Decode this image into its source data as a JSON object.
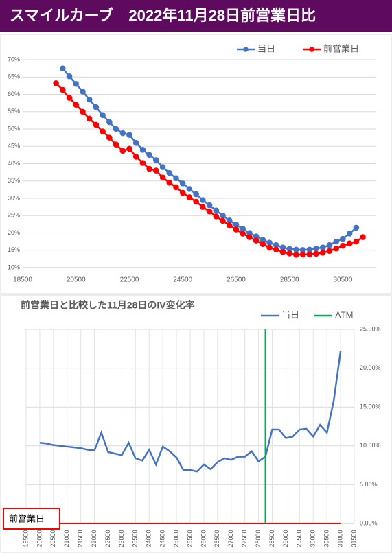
{
  "title": "スマイルカーブ　2022年11月28日前営業日比",
  "chart_data": [
    {
      "type": "line",
      "ylim": [
        10,
        70
      ],
      "xlim": [
        18500,
        31750
      ],
      "grid": "y",
      "markers": true,
      "legend": "top-right",
      "yticks": [
        {
          "value": 10,
          "label": "10%"
        },
        {
          "value": 15,
          "label": "15%"
        },
        {
          "value": 20,
          "label": "20%"
        },
        {
          "value": 25,
          "label": "25%"
        },
        {
          "value": 30,
          "label": "30%"
        },
        {
          "value": 35,
          "label": "35%"
        },
        {
          "value": 40,
          "label": "40%"
        },
        {
          "value": 45,
          "label": "45%"
        },
        {
          "value": 50,
          "label": "50%"
        },
        {
          "value": 55,
          "label": "55%"
        },
        {
          "value": 60,
          "label": "60%"
        },
        {
          "value": 65,
          "label": "65%"
        },
        {
          "value": 70,
          "label": "70%"
        }
      ],
      "xticks": [
        18500,
        20500,
        22500,
        24500,
        26500,
        28500,
        30500
      ],
      "series": [
        {
          "name": "当日",
          "color": "#4472c4",
          "x": [
            20000,
            20250,
            20500,
            20750,
            21000,
            21250,
            21500,
            21750,
            22000,
            22250,
            22500,
            22750,
            23000,
            23250,
            23500,
            23750,
            24000,
            24250,
            24500,
            24750,
            25000,
            25250,
            25500,
            25750,
            26000,
            26250,
            26500,
            26750,
            27000,
            27250,
            27500,
            27750,
            28000,
            28250,
            28500,
            28750,
            29000,
            29250,
            29500,
            29750,
            30000,
            30250,
            30500,
            30750,
            31000
          ],
          "values": [
            67.5,
            65.2,
            63,
            60.8,
            58.5,
            56.3,
            54,
            52,
            50,
            48.8,
            48.3,
            46,
            44,
            42.5,
            41,
            39,
            37.3,
            35.8,
            34.3,
            32.7,
            31.2,
            29.5,
            28,
            26.5,
            25,
            23.6,
            22.4,
            21.2,
            20,
            19,
            18,
            17.2,
            16.5,
            15.8,
            15.4,
            15.2,
            15.1,
            15.2,
            15.5,
            15.8,
            16.5,
            17.5,
            18.3,
            19.8,
            21.5
          ]
        },
        {
          "name": "前営業日",
          "color": "#ff0000",
          "x": [
            19750,
            20000,
            20250,
            20500,
            20750,
            21000,
            21250,
            21500,
            21750,
            22000,
            22250,
            22500,
            22750,
            23000,
            23250,
            23500,
            23750,
            24000,
            24250,
            24500,
            24750,
            25000,
            25250,
            25500,
            25750,
            26000,
            26250,
            26500,
            26750,
            27000,
            27250,
            27500,
            27750,
            28000,
            28250,
            28500,
            28750,
            29000,
            29250,
            29500,
            29750,
            30000,
            30250,
            30500,
            30750,
            31000,
            31250
          ],
          "values": [
            63.2,
            61.3,
            59,
            57,
            55,
            53,
            51.2,
            49.3,
            47.5,
            45.5,
            43.7,
            44.3,
            42,
            40.2,
            38.5,
            38,
            36,
            34.5,
            33.2,
            31.6,
            30.3,
            29,
            27.5,
            26.2,
            24.8,
            23.5,
            22.2,
            21,
            19.8,
            18.8,
            17.8,
            16.8,
            15.8,
            15.2,
            14.5,
            14.1,
            13.7,
            13.8,
            13.8,
            14,
            14.3,
            14.8,
            15.5,
            16.3,
            17,
            17.5,
            18.8
          ]
        }
      ]
    },
    {
      "type": "line",
      "title": "前営業日と比較した11月28日のIV変化率",
      "ylim": [
        0,
        25
      ],
      "xlim": [
        19500,
        31500
      ],
      "grid": "both",
      "markers": false,
      "legend": "top-right",
      "y_axis_position": "right",
      "xtick_rotation": 90,
      "yticks": [
        {
          "value": 0,
          "label": "0.00%"
        },
        {
          "value": 5,
          "label": "5.00%"
        },
        {
          "value": 10,
          "label": "10.00%"
        },
        {
          "value": 15,
          "label": "15.00%"
        },
        {
          "value": 20,
          "label": "20.00%"
        },
        {
          "value": 25,
          "label": "25.00%"
        }
      ],
      "xticks": [
        19500,
        20000,
        20500,
        21000,
        21500,
        22000,
        22500,
        23000,
        23500,
        24000,
        24500,
        25000,
        25500,
        26000,
        26500,
        27000,
        27500,
        28000,
        28500,
        29000,
        29500,
        30000,
        30500,
        31000,
        31500
      ],
      "x": [
        20000,
        20250,
        20500,
        20750,
        21000,
        21250,
        21500,
        21750,
        22000,
        22250,
        22500,
        22750,
        23000,
        23250,
        23500,
        23750,
        24000,
        24250,
        24500,
        24750,
        25000,
        25250,
        25500,
        25750,
        26000,
        26250,
        26500,
        26750,
        27000,
        27250,
        27500,
        27750,
        28000,
        28250,
        28500,
        28750,
        29000,
        29250,
        29500,
        29750,
        30000,
        30250,
        30500,
        30750,
        31000
      ],
      "series": [
        {
          "name": "当日",
          "color": "#4472c4",
          "values": [
            10.4,
            10.3,
            10.1,
            10.0,
            9.9,
            9.8,
            9.7,
            9.5,
            9.4,
            11.7,
            9.2,
            9.0,
            8.8,
            10.4,
            8.4,
            8.1,
            9.5,
            7.6,
            9.9,
            9.3,
            8.5,
            6.9,
            6.9,
            6.7,
            7.6,
            7.0,
            7.9,
            8.4,
            8.2,
            8.6,
            8.6,
            9.3,
            8.0,
            8.6,
            12.1,
            12.1,
            11.0,
            11.2,
            12.1,
            12.2,
            11.2,
            12.7,
            11.7,
            15.8,
            22.2
          ]
        }
      ],
      "atm": {
        "name": "ATM",
        "color": "#00b050",
        "x": 28250
      },
      "baseline": {
        "name": "前営業日",
        "color": "#ff0000",
        "values": [
          0,
          0,
          0,
          0,
          0,
          0,
          0,
          0,
          0,
          0,
          0,
          0,
          0,
          0,
          0,
          0,
          0,
          0,
          0,
          0,
          0,
          0,
          0,
          0,
          0,
          0,
          0,
          0,
          0,
          0,
          0,
          0,
          0,
          0,
          0,
          0,
          0,
          0,
          0,
          0,
          0,
          0,
          0,
          0,
          0
        ]
      }
    }
  ]
}
